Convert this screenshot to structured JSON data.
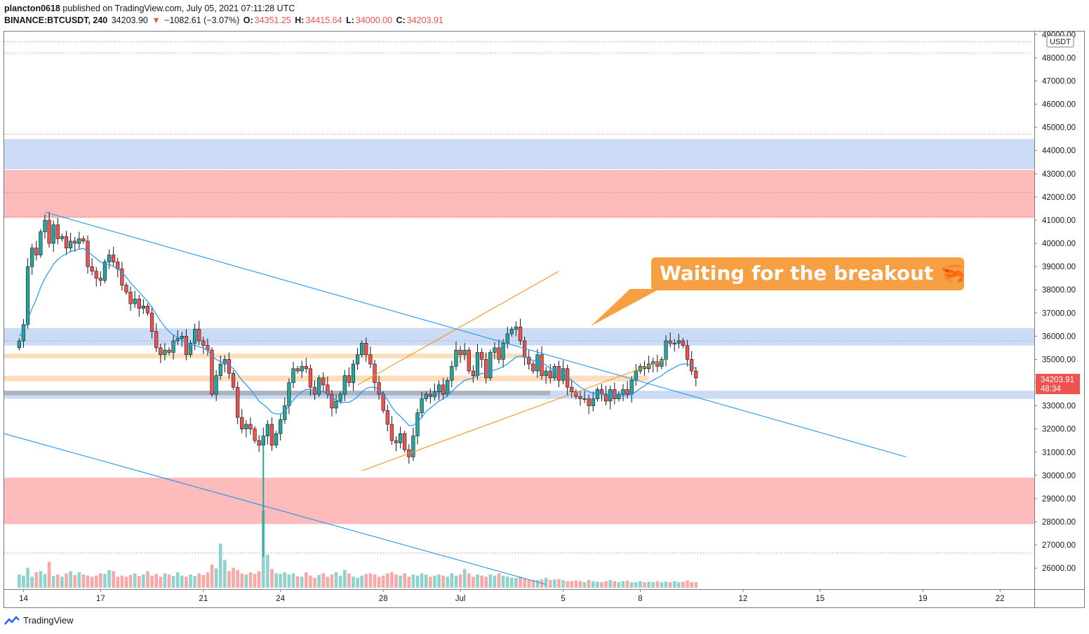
{
  "header": {
    "publisher": "plancton0618",
    "published_text": "published on TradingView.com, July 05, 2021 07:11:28 UTC",
    "symbol": "BINANCE:BTCUSDT, 240",
    "last": "34203.90",
    "change": "−1082.61 (−3.07%)",
    "o_label": "O:",
    "o": "34351.25",
    "h_label": "H:",
    "h": "34415.64",
    "l_label": "L:",
    "l": "34000.00",
    "c_label": "C:",
    "c": "34203.91"
  },
  "annotation": {
    "text": "Waiting for the breakout 🦐"
  },
  "price_label": {
    "price": "34203.91",
    "countdown": "48:34"
  },
  "currency": "USDT",
  "footer": {
    "brand": "TradingView"
  },
  "colors": {
    "up": "#26a69a",
    "down": "#ef5350",
    "ma": "#2196f3",
    "trend": "#f7931a",
    "callout": "#f7a043"
  },
  "chart_data": {
    "type": "candlestick",
    "symbol": "BINANCE:BTCUSDT",
    "interval": "240",
    "y_ticks": [
      26000,
      27000,
      28000,
      29000,
      30000,
      31000,
      32000,
      33000,
      34000,
      35000,
      36000,
      37000,
      38000,
      39000,
      40000,
      41000,
      42000,
      43000,
      44000,
      45000,
      46000,
      47000,
      48000,
      49000
    ],
    "x_ticks": [
      [
        "14",
        1
      ],
      [
        "17",
        19
      ],
      [
        "21",
        43
      ],
      [
        "24",
        61
      ],
      [
        "28",
        85
      ],
      [
        "Jul",
        103
      ],
      [
        "5",
        127
      ],
      [
        "8",
        145
      ],
      [
        "12",
        169
      ],
      [
        "15",
        187
      ],
      [
        "19",
        211
      ],
      [
        "22",
        229
      ]
    ],
    "x_range": [
      -3.5,
      237
    ],
    "ylim": [
      25400,
      49100
    ],
    "close": [
      35800,
      36500,
      39000,
      39800,
      39500,
      40500,
      41000,
      40000,
      40800,
      40200,
      40300,
      39800,
      40100,
      40000,
      40200,
      40100,
      39000,
      38800,
      38500,
      38400,
      39200,
      39500,
      39200,
      38900,
      38200,
      37900,
      37400,
      37600,
      37200,
      37300,
      37000,
      36200,
      35500,
      35200,
      35400,
      35300,
      35800,
      35900,
      36000,
      35200,
      35700,
      36300,
      35800,
      35600,
      35400,
      33500,
      34300,
      34800,
      35000,
      34400,
      33800,
      32500,
      32000,
      32200,
      32000,
      31500,
      31300,
      31700,
      32200,
      31300,
      31800,
      32400,
      33000,
      34000,
      34600,
      34500,
      34700,
      34600,
      33800,
      33500,
      34200,
      33900,
      33500,
      32900,
      33200,
      33500,
      34300,
      34000,
      34800,
      35200,
      35700,
      35200,
      34800,
      34000,
      33500,
      32800,
      32200,
      31500,
      31400,
      31800,
      31100,
      30800,
      31700,
      32700,
      33300,
      33500,
      33400,
      33600,
      33900,
      33500,
      34100,
      34700,
      35400,
      35200,
      35400,
      34500,
      34300,
      35300,
      35000,
      34200,
      35300,
      35500,
      35000,
      35700,
      36100,
      36300,
      36400,
      35800,
      35100,
      34800,
      34500,
      35200,
      34300,
      34500,
      34200,
      34700,
      34100,
      34600,
      33800,
      33600,
      33400,
      33300,
      33300,
      33000,
      33300,
      33700,
      33500,
      33200,
      33700,
      33300,
      33500,
      33700,
      33500,
      34100,
      34500,
      34700,
      34600,
      34800,
      34900,
      34700,
      35000,
      35800,
      35700,
      35700,
      35800,
      35600,
      35000,
      34500,
      34200
    ],
    "ma": [
      36000,
      36200,
      36700,
      37200,
      37600,
      38100,
      38500,
      38800,
      39100,
      39300,
      39450,
      39550,
      39650,
      39700,
      39750,
      39780,
      39650,
      39500,
      39350,
      39200,
      39100,
      39100,
      39000,
      38900,
      38750,
      38550,
      38300,
      38100,
      37900,
      37700,
      37500,
      37250,
      36950,
      36650,
      36400,
      36200,
      36050,
      35950,
      35850,
      35700,
      35650,
      35600,
      35550,
      35480,
      35400,
      35150,
      35000,
      34900,
      34850,
      34750,
      34600,
      34350,
      34100,
      33900,
      33700,
      33450,
      33200,
      33050,
      32900,
      32700,
      32650,
      32650,
      32750,
      33000,
      33250,
      33450,
      33600,
      33700,
      33700,
      33650,
      33650,
      33600,
      33500,
      33350,
      33250,
      33150,
      33150,
      33150,
      33250,
      33400,
      33600,
      33750,
      33800,
      33800,
      33700,
      33500,
      33250,
      32950,
      32700,
      32550,
      32350,
      32150,
      32150,
      32300,
      32500,
      32750,
      32900,
      33050,
      33200,
      33300,
      33450,
      33600,
      33800,
      33950,
      34100,
      34150,
      34200,
      34300,
      34400,
      34400,
      34450,
      34550,
      34600,
      34700,
      34800,
      34950,
      35100,
      35150,
      35100,
      35050,
      34950,
      34950,
      34850,
      34750,
      34600,
      34550,
      34450,
      34400,
      34250,
      34100,
      33950,
      33800,
      33700,
      33600,
      33550,
      33550,
      33500,
      33450,
      33450,
      33450,
      33450,
      33450,
      33450,
      33500,
      33600,
      33750,
      33850,
      34000,
      34100,
      34200,
      34300,
      34450,
      34550,
      34650,
      34750,
      34800,
      34800,
      34700,
      34600
    ],
    "volume": [
      2.4,
      2.2,
      3.6,
      2.0,
      2.8,
      3.0,
      2.5,
      4.7,
      2.1,
      2.4,
      2.0,
      2.6,
      3.0,
      2.3,
      2.8,
      2.4,
      2.2,
      2.0,
      2.2,
      2.6,
      2.5,
      3.2,
      3.0,
      2.0,
      2.2,
      2.0,
      2.3,
      2.6,
      2.1,
      2.4,
      3.0,
      2.2,
      2.5,
      2.0,
      2.6,
      2.4,
      2.1,
      2.8,
      2.2,
      2.0,
      2.4,
      2.1,
      2.6,
      2.3,
      2.8,
      4.2,
      3.5,
      8.0,
      5.0,
      3.0,
      3.6,
      3.2,
      2.6,
      2.4,
      2.8,
      2.5,
      3.0,
      14.0,
      6.0,
      3.4,
      2.6,
      2.5,
      2.8,
      2.4,
      2.6,
      2.1,
      2.0,
      2.8,
      2.2,
      1.8,
      2.3,
      2.6,
      2.0,
      2.4,
      2.8,
      2.2,
      3.2,
      2.6,
      2.0,
      1.8,
      2.2,
      2.5,
      2.6,
      2.4,
      2.0,
      2.2,
      2.6,
      2.8,
      2.4,
      2.2,
      2.6,
      2.0,
      2.4,
      2.2,
      2.6,
      2.4,
      2.0,
      2.2,
      2.4,
      2.2,
      2.0,
      2.6,
      2.2,
      2.4,
      3.4,
      2.6,
      2.0,
      2.4,
      2.2,
      2.0,
      2.4,
      2.2,
      2.6,
      2.2,
      2.0,
      1.8,
      1.8,
      2.0,
      1.6,
      1.4,
      1.4,
      1.4,
      1.5,
      1.8,
      1.4,
      1.5,
      1.6,
      1.4,
      1.2,
      1.2,
      1.3,
      1.2,
      1.0,
      1.4,
      1.2,
      1.1,
      1.0,
      1.2,
      1.4,
      1.2,
      1.0,
      1.2,
      1.3,
      1.0,
      1.0,
      1.2,
      1.0,
      1.1,
      1.0,
      1.2,
      1.0,
      1.1,
      1.0,
      1.2,
      1.0,
      1.1,
      1.3,
      1.0,
      1.0
    ]
  }
}
